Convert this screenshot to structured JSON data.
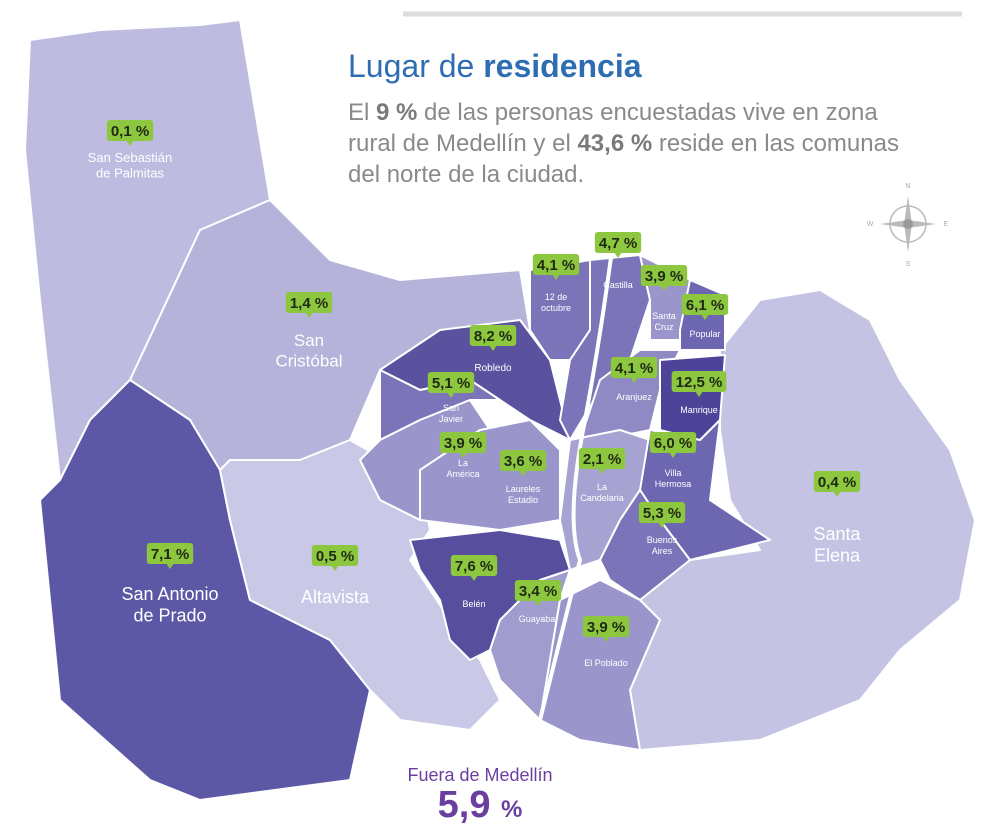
{
  "header": {
    "title": {
      "prefix": "Lugar de",
      "emphasis": "residencia"
    },
    "description": [
      {
        "text": "El ",
        "bold": false
      },
      {
        "text": "9 %",
        "bold": true
      },
      {
        "text": " de las personas encuestadas vive en zona rural de Medellín y el ",
        "bold": false
      },
      {
        "text": "43,6 %",
        "bold": true
      },
      {
        "text": " reside en las comunas del norte de la ciudad.",
        "bold": false
      }
    ]
  },
  "compass": {
    "north": "N",
    "south": "S",
    "east": "E",
    "west": "W"
  },
  "regions": [
    {
      "label": "0,1 %",
      "name_lines": [
        "San Sebastián",
        "de Palmitas"
      ],
      "color": "#bdbce0"
    },
    {
      "label": "1,4 %",
      "name_lines": [
        "San",
        "Cristóbal"
      ],
      "color": "#b5b3da"
    },
    {
      "label": "7,1 %",
      "name_lines": [
        "San Antonio",
        "de Prado"
      ],
      "color": "#5d58a6"
    },
    {
      "label": "0,5 %",
      "name_lines": [
        "Altavista"
      ],
      "color": "#c9c8e6"
    },
    {
      "label": "0,4 %",
      "name_lines": [
        "Santa",
        "Elena"
      ],
      "color": "#c4c3e3"
    },
    {
      "label": "8,2 %",
      "name_lines": [
        "Robledo"
      ],
      "color": "#5a519f"
    },
    {
      "label": "4,1 %",
      "name_lines": [
        "12 de",
        "octubre"
      ],
      "color": "#7b74b8"
    },
    {
      "label": "4,7 %",
      "name_lines": [
        "Castilla"
      ],
      "color": "#7b74b8"
    },
    {
      "label": "3,9 %",
      "name_lines": [
        "Santa",
        "Cruz"
      ],
      "color": "#9a96cb"
    },
    {
      "label": "6,1 %",
      "name_lines": [
        "Popular"
      ],
      "color": "#6d66b0"
    },
    {
      "label": "4,1 %",
      "name_lines": [
        "Aranjuez"
      ],
      "color": "#8f8ac4"
    },
    {
      "label": "12,5 %",
      "name_lines": [
        "Manrique"
      ],
      "color": "#4d4399"
    },
    {
      "label": "5,1 %",
      "name_lines": [
        "San",
        "Javier"
      ],
      "color": "#7b74b8"
    },
    {
      "label": "3,9 %",
      "name_lines": [
        "La",
        "América"
      ],
      "color": "#9a96cb"
    },
    {
      "label": "3,6 %",
      "name_lines": [
        "Laureles",
        "Estadio"
      ],
      "color": "#9a96cb"
    },
    {
      "label": "2,1 %",
      "name_lines": [
        "La",
        "Candelaria"
      ],
      "color": "#a6a3d2"
    },
    {
      "label": "6,0 %",
      "name_lines": [
        "Villa",
        "Hermosa"
      ],
      "color": "#6d66b0"
    },
    {
      "label": "5,3 %",
      "name_lines": [
        "Buenos",
        "Aires"
      ],
      "color": "#7b74b8"
    },
    {
      "label": "7,6 %",
      "name_lines": [
        "Belén"
      ],
      "color": "#574f9e"
    },
    {
      "label": "3,4 %",
      "name_lines": [
        "Guayabal"
      ],
      "color": "#a09cce"
    },
    {
      "label": "3,9 %",
      "name_lines": [
        "El Poblado"
      ],
      "color": "#9a96cb"
    }
  ],
  "footer": {
    "caption": "Fuera de Medellín",
    "value": "5,9",
    "unit": "%"
  }
}
